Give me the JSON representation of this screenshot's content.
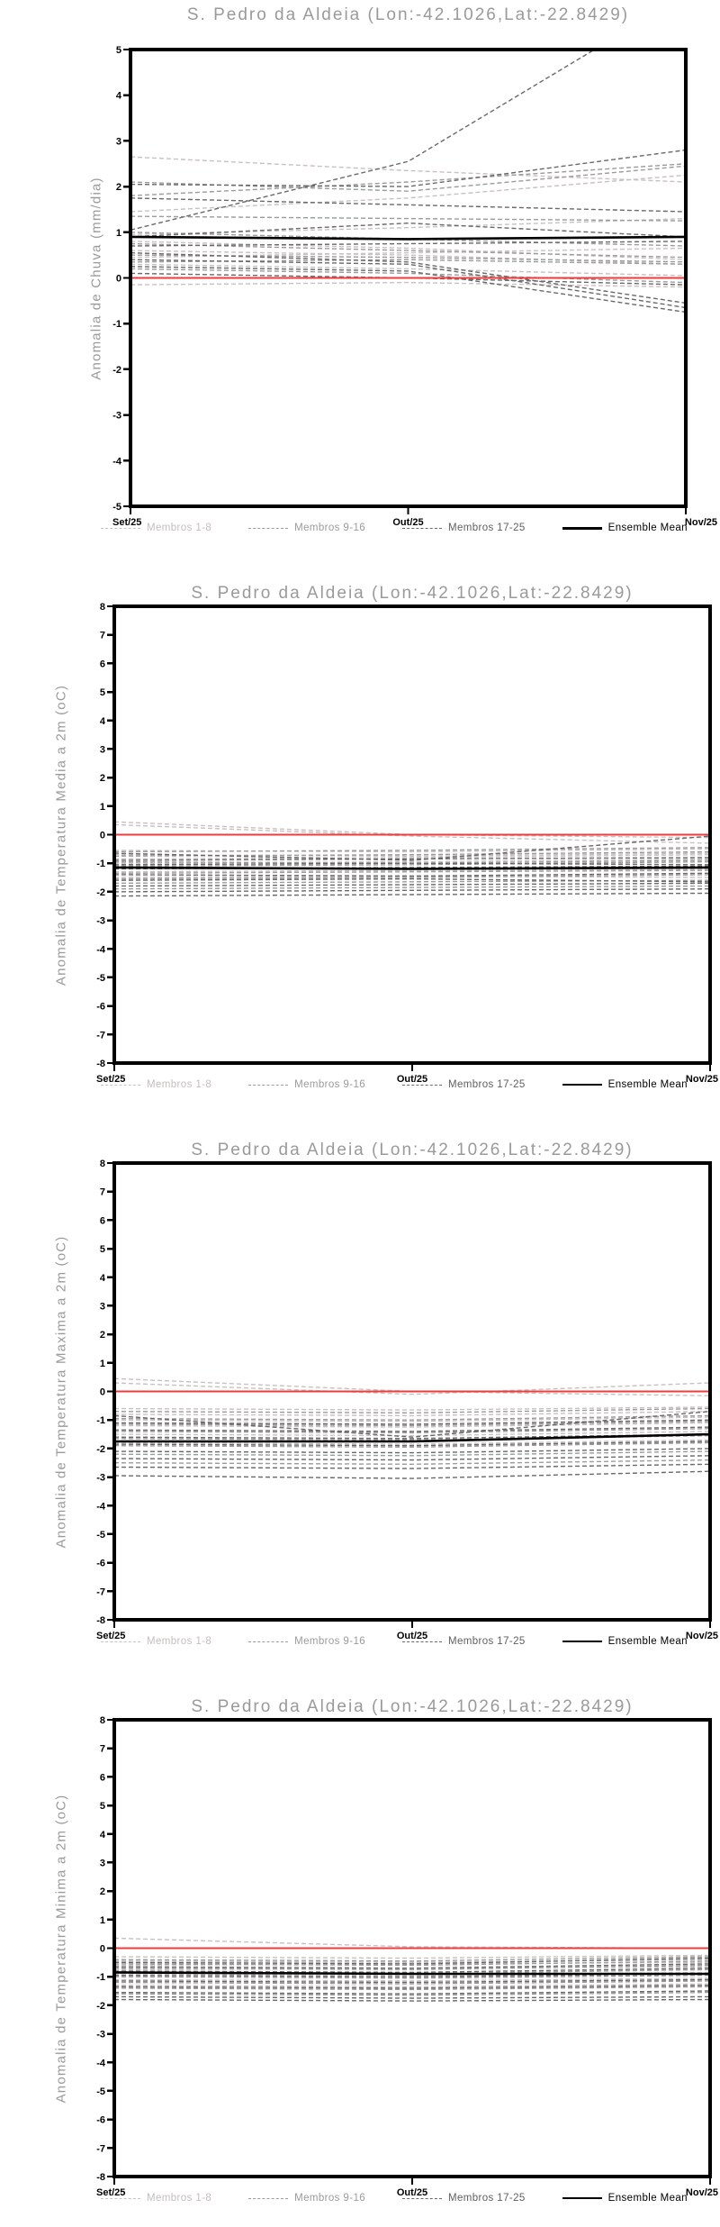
{
  "page_title": "S. Pedro da Aldeia ensemble forecast anomalies",
  "legend": {
    "items": [
      {
        "label": "Membros 1-8"
      },
      {
        "label": "Membros 9-16"
      },
      {
        "label": "Membros 17-25"
      },
      {
        "label": "Ensemble Mean"
      }
    ]
  },
  "colors": {
    "groups": [
      "#c9c0c0",
      "#9b9b9b",
      "#696969"
    ],
    "mean": "#000000",
    "zero": "#f23b3b",
    "frame": "#000000",
    "title": "#9a9a9a",
    "tick": "#000000"
  },
  "chart_data": [
    {
      "type": "line",
      "title": "S. Pedro da Aldeia (Lon:-42.1026,Lat:-22.8429)",
      "ylabel": "Anomalia de Chuva (mm/dia)",
      "x_labels": [
        "Set/25",
        "Out/25",
        "Nov/25"
      ],
      "ylim": [
        -5,
        5
      ],
      "ytick_step": 1,
      "grid": false,
      "legend_position": "bottom",
      "zero_line": 0,
      "mean": [
        0.9,
        0.85,
        0.9
      ],
      "groups": [
        {
          "name": "Membros 1-8",
          "values": [
            [
              2.65,
              2.35,
              2.1
            ],
            [
              1.45,
              1.75,
              2.25
            ],
            [
              0.95,
              1.1,
              1.3
            ],
            [
              0.8,
              0.65,
              0.4
            ],
            [
              0.6,
              0.5,
              0.3
            ],
            [
              0.45,
              0.55,
              0.65
            ],
            [
              0.3,
              0.2,
              0.05
            ],
            [
              -0.15,
              -0.1,
              -0.2
            ]
          ]
        },
        {
          "name": "Membros 9-16",
          "values": [
            [
              2.1,
              1.9,
              2.45
            ],
            [
              1.8,
              2.1,
              2.5
            ],
            [
              1.35,
              1.3,
              1.25
            ],
            [
              1.0,
              0.85,
              0.7
            ],
            [
              0.75,
              0.6,
              0.45
            ],
            [
              0.5,
              0.45,
              0.35
            ],
            [
              0.35,
              0.4,
              0.3
            ],
            [
              0.2,
              0.1,
              -0.1
            ]
          ]
        },
        {
          "name": "Membros 17-25",
          "values": [
            [
              2.05,
              2.0,
              2.8
            ],
            [
              1.75,
              1.6,
              1.45
            ],
            [
              1.05,
              2.55,
              6.2
            ],
            [
              0.9,
              1.2,
              0.9
            ],
            [
              0.7,
              0.75,
              0.8
            ],
            [
              0.55,
              0.35,
              -0.55
            ],
            [
              0.4,
              0.3,
              -0.65
            ],
            [
              0.25,
              0.15,
              -0.75
            ],
            [
              0.1,
              0.0,
              -0.15
            ]
          ]
        }
      ]
    },
    {
      "type": "line",
      "title": "S. Pedro da Aldeia (Lon:-42.1026,Lat:-22.8429)",
      "ylabel": "Anomalia de Temperatura Media a 2m (oC)",
      "x_labels": [
        "Set/25",
        "Out/25",
        "Nov/25"
      ],
      "ylim": [
        -8,
        8
      ],
      "ytick_step": 1,
      "grid": false,
      "legend_position": "bottom",
      "zero_line": 0,
      "mean": [
        -1.15,
        -1.2,
        -1.15
      ],
      "groups": [
        {
          "name": "Membros 1-8",
          "values": [
            [
              0.45,
              0.0,
              -0.1
            ],
            [
              0.35,
              -0.05,
              -0.3
            ],
            [
              -0.55,
              -0.6,
              -0.5
            ],
            [
              -0.7,
              -0.75,
              -0.65
            ],
            [
              -0.85,
              -0.8,
              -0.7
            ],
            [
              -1.0,
              -0.95,
              -0.85
            ],
            [
              -1.3,
              -1.25,
              -1.2
            ],
            [
              -1.5,
              -1.45,
              -1.5
            ]
          ]
        },
        {
          "name": "Membros 9-16",
          "values": [
            [
              -0.6,
              -0.55,
              -0.45
            ],
            [
              -0.75,
              -0.7,
              -0.6
            ],
            [
              -0.95,
              -1.0,
              -0.9
            ],
            [
              -1.1,
              -1.05,
              -0.95
            ],
            [
              -1.35,
              -1.3,
              -1.25
            ],
            [
              -1.55,
              -1.5,
              -1.4
            ],
            [
              -1.7,
              -1.65,
              -1.6
            ],
            [
              -1.9,
              -1.85,
              -1.8
            ]
          ]
        },
        {
          "name": "Membros 17-25",
          "values": [
            [
              -0.65,
              -0.9,
              -0.05
            ],
            [
              -0.9,
              -0.85,
              -0.8
            ],
            [
              -1.05,
              -1.0,
              -1.05
            ],
            [
              -1.2,
              -1.15,
              -1.1
            ],
            [
              -1.4,
              -1.45,
              -1.35
            ],
            [
              -1.6,
              -1.55,
              -1.65
            ],
            [
              -1.8,
              -1.75,
              -1.7
            ],
            [
              -2.0,
              -1.95,
              -1.9
            ],
            [
              -2.15,
              -2.1,
              -2.05
            ]
          ]
        }
      ]
    },
    {
      "type": "line",
      "title": "S. Pedro da Aldeia (Lon:-42.1026,Lat:-22.8429)",
      "ylabel": "Anomalia de Temperatura Maxima a 2m (oC)",
      "x_labels": [
        "Set/25",
        "Out/25",
        "Nov/25"
      ],
      "ylim": [
        -8,
        8
      ],
      "ytick_step": 1,
      "grid": false,
      "legend_position": "bottom",
      "zero_line": 0,
      "mean": [
        -1.75,
        -1.75,
        -1.5
      ],
      "groups": [
        {
          "name": "Membros 1-8",
          "values": [
            [
              0.45,
              0.0,
              -0.15
            ],
            [
              0.3,
              -0.1,
              0.3
            ],
            [
              -0.6,
              -0.65,
              -0.55
            ],
            [
              -0.8,
              -0.85,
              -0.7
            ],
            [
              -1.0,
              -1.05,
              -0.9
            ],
            [
              -1.2,
              -1.25,
              -1.1
            ],
            [
              -1.5,
              -1.55,
              -1.4
            ],
            [
              -1.8,
              -1.85,
              -1.7
            ]
          ]
        },
        {
          "name": "Membros 9-16",
          "values": [
            [
              -0.7,
              -0.75,
              -0.6
            ],
            [
              -0.95,
              -1.0,
              -0.85
            ],
            [
              -1.15,
              -1.2,
              -1.05
            ],
            [
              -1.4,
              -1.45,
              -1.3
            ],
            [
              -1.65,
              -1.7,
              -1.55
            ],
            [
              -1.9,
              -1.95,
              -1.8
            ],
            [
              -2.2,
              -2.25,
              -2.1
            ],
            [
              -2.5,
              -2.55,
              -2.4
            ]
          ]
        },
        {
          "name": "Membros 17-25",
          "values": [
            [
              -0.85,
              -1.6,
              -0.7
            ],
            [
              -1.1,
              -1.15,
              -1.0
            ],
            [
              -1.35,
              -1.4,
              -1.25
            ],
            [
              -1.6,
              -1.65,
              -1.5
            ],
            [
              -1.85,
              -1.9,
              -1.75
            ],
            [
              -2.1,
              -2.15,
              -2.0
            ],
            [
              -2.35,
              -2.4,
              -2.25
            ],
            [
              -2.65,
              -2.7,
              -2.55
            ],
            [
              -2.95,
              -3.05,
              -2.8
            ]
          ]
        }
      ]
    },
    {
      "type": "line",
      "title": "S. Pedro da Aldeia (Lon:-42.1026,Lat:-22.8429)",
      "ylabel": "Anomalia de Temperatura Minima a 2m (oC)",
      "x_labels": [
        "Set/25",
        "Out/25",
        "Nov/25"
      ],
      "ylim": [
        -8,
        8
      ],
      "ytick_step": 1,
      "grid": false,
      "legend_position": "bottom",
      "zero_line": 0,
      "mean": [
        -0.85,
        -0.9,
        -0.9
      ],
      "groups": [
        {
          "name": "Membros 1-8",
          "values": [
            [
              0.35,
              0.05,
              0.0
            ],
            [
              -0.3,
              -0.35,
              -0.25
            ],
            [
              -0.45,
              -0.5,
              -0.4
            ],
            [
              -0.6,
              -0.55,
              -0.5
            ],
            [
              -0.75,
              -0.7,
              -0.65
            ],
            [
              -0.9,
              -0.95,
              -0.85
            ],
            [
              -1.1,
              -1.15,
              -1.05
            ],
            [
              -1.3,
              -1.35,
              -1.25
            ]
          ]
        },
        {
          "name": "Membros 9-16",
          "values": [
            [
              -0.4,
              -0.45,
              -0.3
            ],
            [
              -0.55,
              -0.6,
              -0.45
            ],
            [
              -0.7,
              -0.75,
              -0.6
            ],
            [
              -0.85,
              -0.9,
              -0.75
            ],
            [
              -1.0,
              -1.05,
              -0.95
            ],
            [
              -1.2,
              -1.25,
              -1.15
            ],
            [
              -1.4,
              -1.45,
              -1.35
            ],
            [
              -1.6,
              -1.65,
              -1.55
            ]
          ]
        },
        {
          "name": "Membros 17-25",
          "values": [
            [
              -0.5,
              -0.55,
              -0.35
            ],
            [
              -0.65,
              -0.7,
              -0.55
            ],
            [
              -0.8,
              -0.85,
              -0.7
            ],
            [
              -0.95,
              -1.0,
              -0.9
            ],
            [
              -1.15,
              -1.2,
              -1.1
            ],
            [
              -1.35,
              -1.4,
              -1.3
            ],
            [
              -1.55,
              -1.6,
              -1.5
            ],
            [
              -1.7,
              -1.75,
              -1.7
            ],
            [
              -1.8,
              -1.85,
              -1.8
            ]
          ]
        }
      ]
    }
  ]
}
